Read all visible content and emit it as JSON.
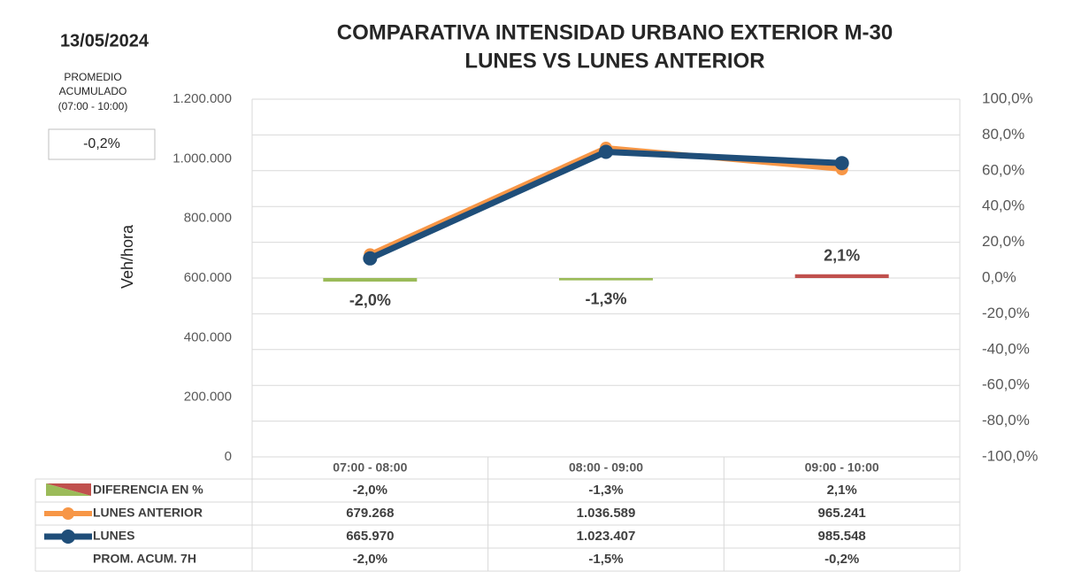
{
  "date": "13/05/2024",
  "summary": {
    "label_lines": [
      "PROMEDIO",
      "ACUMULADO",
      "(07:00 - 10:00)"
    ],
    "value": -0.2,
    "value_label": "-0,2%"
  },
  "chart_data": {
    "type": "combo",
    "title_lines": [
      "COMPARATIVA INTENSIDAD URBANO EXTERIOR M-30",
      "LUNES VS LUNES ANTERIOR"
    ],
    "y_label": "Veh/hora",
    "categories": [
      "07:00 - 08:00",
      "08:00 - 09:00",
      "09:00 - 10:00"
    ],
    "ylim": [
      0,
      1200000
    ],
    "yticks": [
      {
        "value": 0,
        "label": "0"
      },
      {
        "value": 200000,
        "label": "200.000"
      },
      {
        "value": 400000,
        "label": "400.000"
      },
      {
        "value": 600000,
        "label": "600.000"
      },
      {
        "value": 800000,
        "label": "800.000"
      },
      {
        "value": 1000000,
        "label": "1.000.000"
      },
      {
        "value": 1200000,
        "label": "1.200.000"
      }
    ],
    "y2lim": [
      -100,
      100
    ],
    "y2ticks": [
      {
        "value": -100,
        "label": "-100,0%"
      },
      {
        "value": -80,
        "label": "-80,0%"
      },
      {
        "value": -60,
        "label": "-60,0%"
      },
      {
        "value": -40,
        "label": "-40,0%"
      },
      {
        "value": -20,
        "label": "-20,0%"
      },
      {
        "value": 0,
        "label": "0,0%"
      },
      {
        "value": 20,
        "label": "20,0%"
      },
      {
        "value": 40,
        "label": "40,0%"
      },
      {
        "value": 60,
        "label": "60,0%"
      },
      {
        "value": 80,
        "label": "80,0%"
      },
      {
        "value": 100,
        "label": "100,0%"
      }
    ],
    "grid": "y2",
    "series": [
      {
        "name": "DIFERENCIA EN %",
        "type": "bar",
        "axis": "y2",
        "colors": [
          "#9bbb59",
          "#9bbb59",
          "#c0504d"
        ],
        "values": [
          -2.0,
          -1.3,
          2.1
        ],
        "value_labels": [
          "-2,0%",
          "-1,3%",
          "2,1%"
        ]
      },
      {
        "name": "LUNES ANTERIOR",
        "type": "line",
        "color": "#f79646",
        "values": [
          679268,
          1036589,
          965241
        ],
        "value_labels": [
          "679.268",
          "1.036.589",
          "965.241"
        ]
      },
      {
        "name": "LUNES",
        "type": "line",
        "color": "#1f4e79",
        "values": [
          665970,
          1023407,
          985548
        ],
        "value_labels": [
          "665.970",
          "1.023.407",
          "985.548"
        ]
      },
      {
        "name": "PROM. ACUM. 7H",
        "type": "table",
        "values": [
          -2.0,
          -1.5,
          -0.2
        ],
        "value_labels": [
          "-2,0%",
          "-1,5%",
          "-0,2%"
        ]
      }
    ]
  }
}
